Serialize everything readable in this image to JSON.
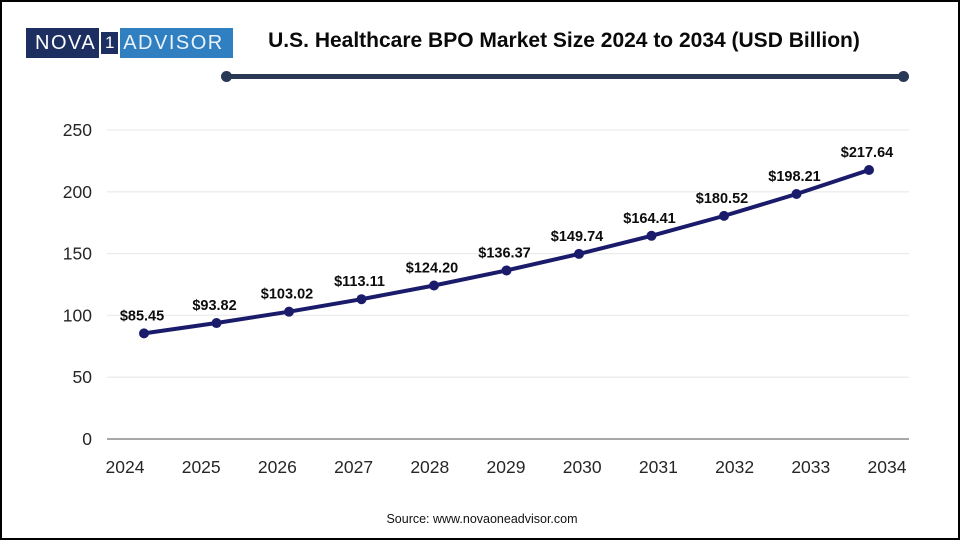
{
  "header": {
    "logo": {
      "part_dark": "NOVA",
      "part_one": "1",
      "part_light": "ADVISOR"
    },
    "title": "U.S. Healthcare BPO Market Size 2024 to 2034 (USD Billion)"
  },
  "footer": {
    "source": "Source: www.novaoneadvisor.com"
  },
  "colors": {
    "line": "#1b1b6b",
    "marker": "#1b1b6b",
    "title_underline": "#293854",
    "logo_dark_bg": "#1c2f60",
    "logo_light_bg": "#2f7fc1",
    "gridline": "#ececec",
    "axis_line": "#a8a8a8",
    "tick_label": "#262626",
    "data_label": "#0d0d0d"
  },
  "chart_data": {
    "type": "line",
    "title": "U.S. Healthcare BPO Market Size 2024 to 2034 (USD Billion)",
    "xlabel": "",
    "ylabel": "",
    "categories": [
      "2024",
      "2025",
      "2026",
      "2027",
      "2028",
      "2029",
      "2030",
      "2031",
      "2032",
      "2033",
      "2034"
    ],
    "values": [
      85.45,
      93.82,
      103.02,
      113.11,
      124.2,
      136.37,
      149.74,
      164.41,
      180.52,
      198.21,
      217.64
    ],
    "data_labels": [
      "$85.45",
      "$93.82",
      "$103.02",
      "$113.11",
      "$124.20",
      "$136.37",
      "$149.74",
      "$164.41",
      "$180.52",
      "$198.21",
      "$217.64"
    ],
    "ylim": [
      0,
      250
    ],
    "yticks": [
      0,
      50,
      100,
      150,
      200,
      250
    ],
    "grid": true,
    "legend": false
  }
}
